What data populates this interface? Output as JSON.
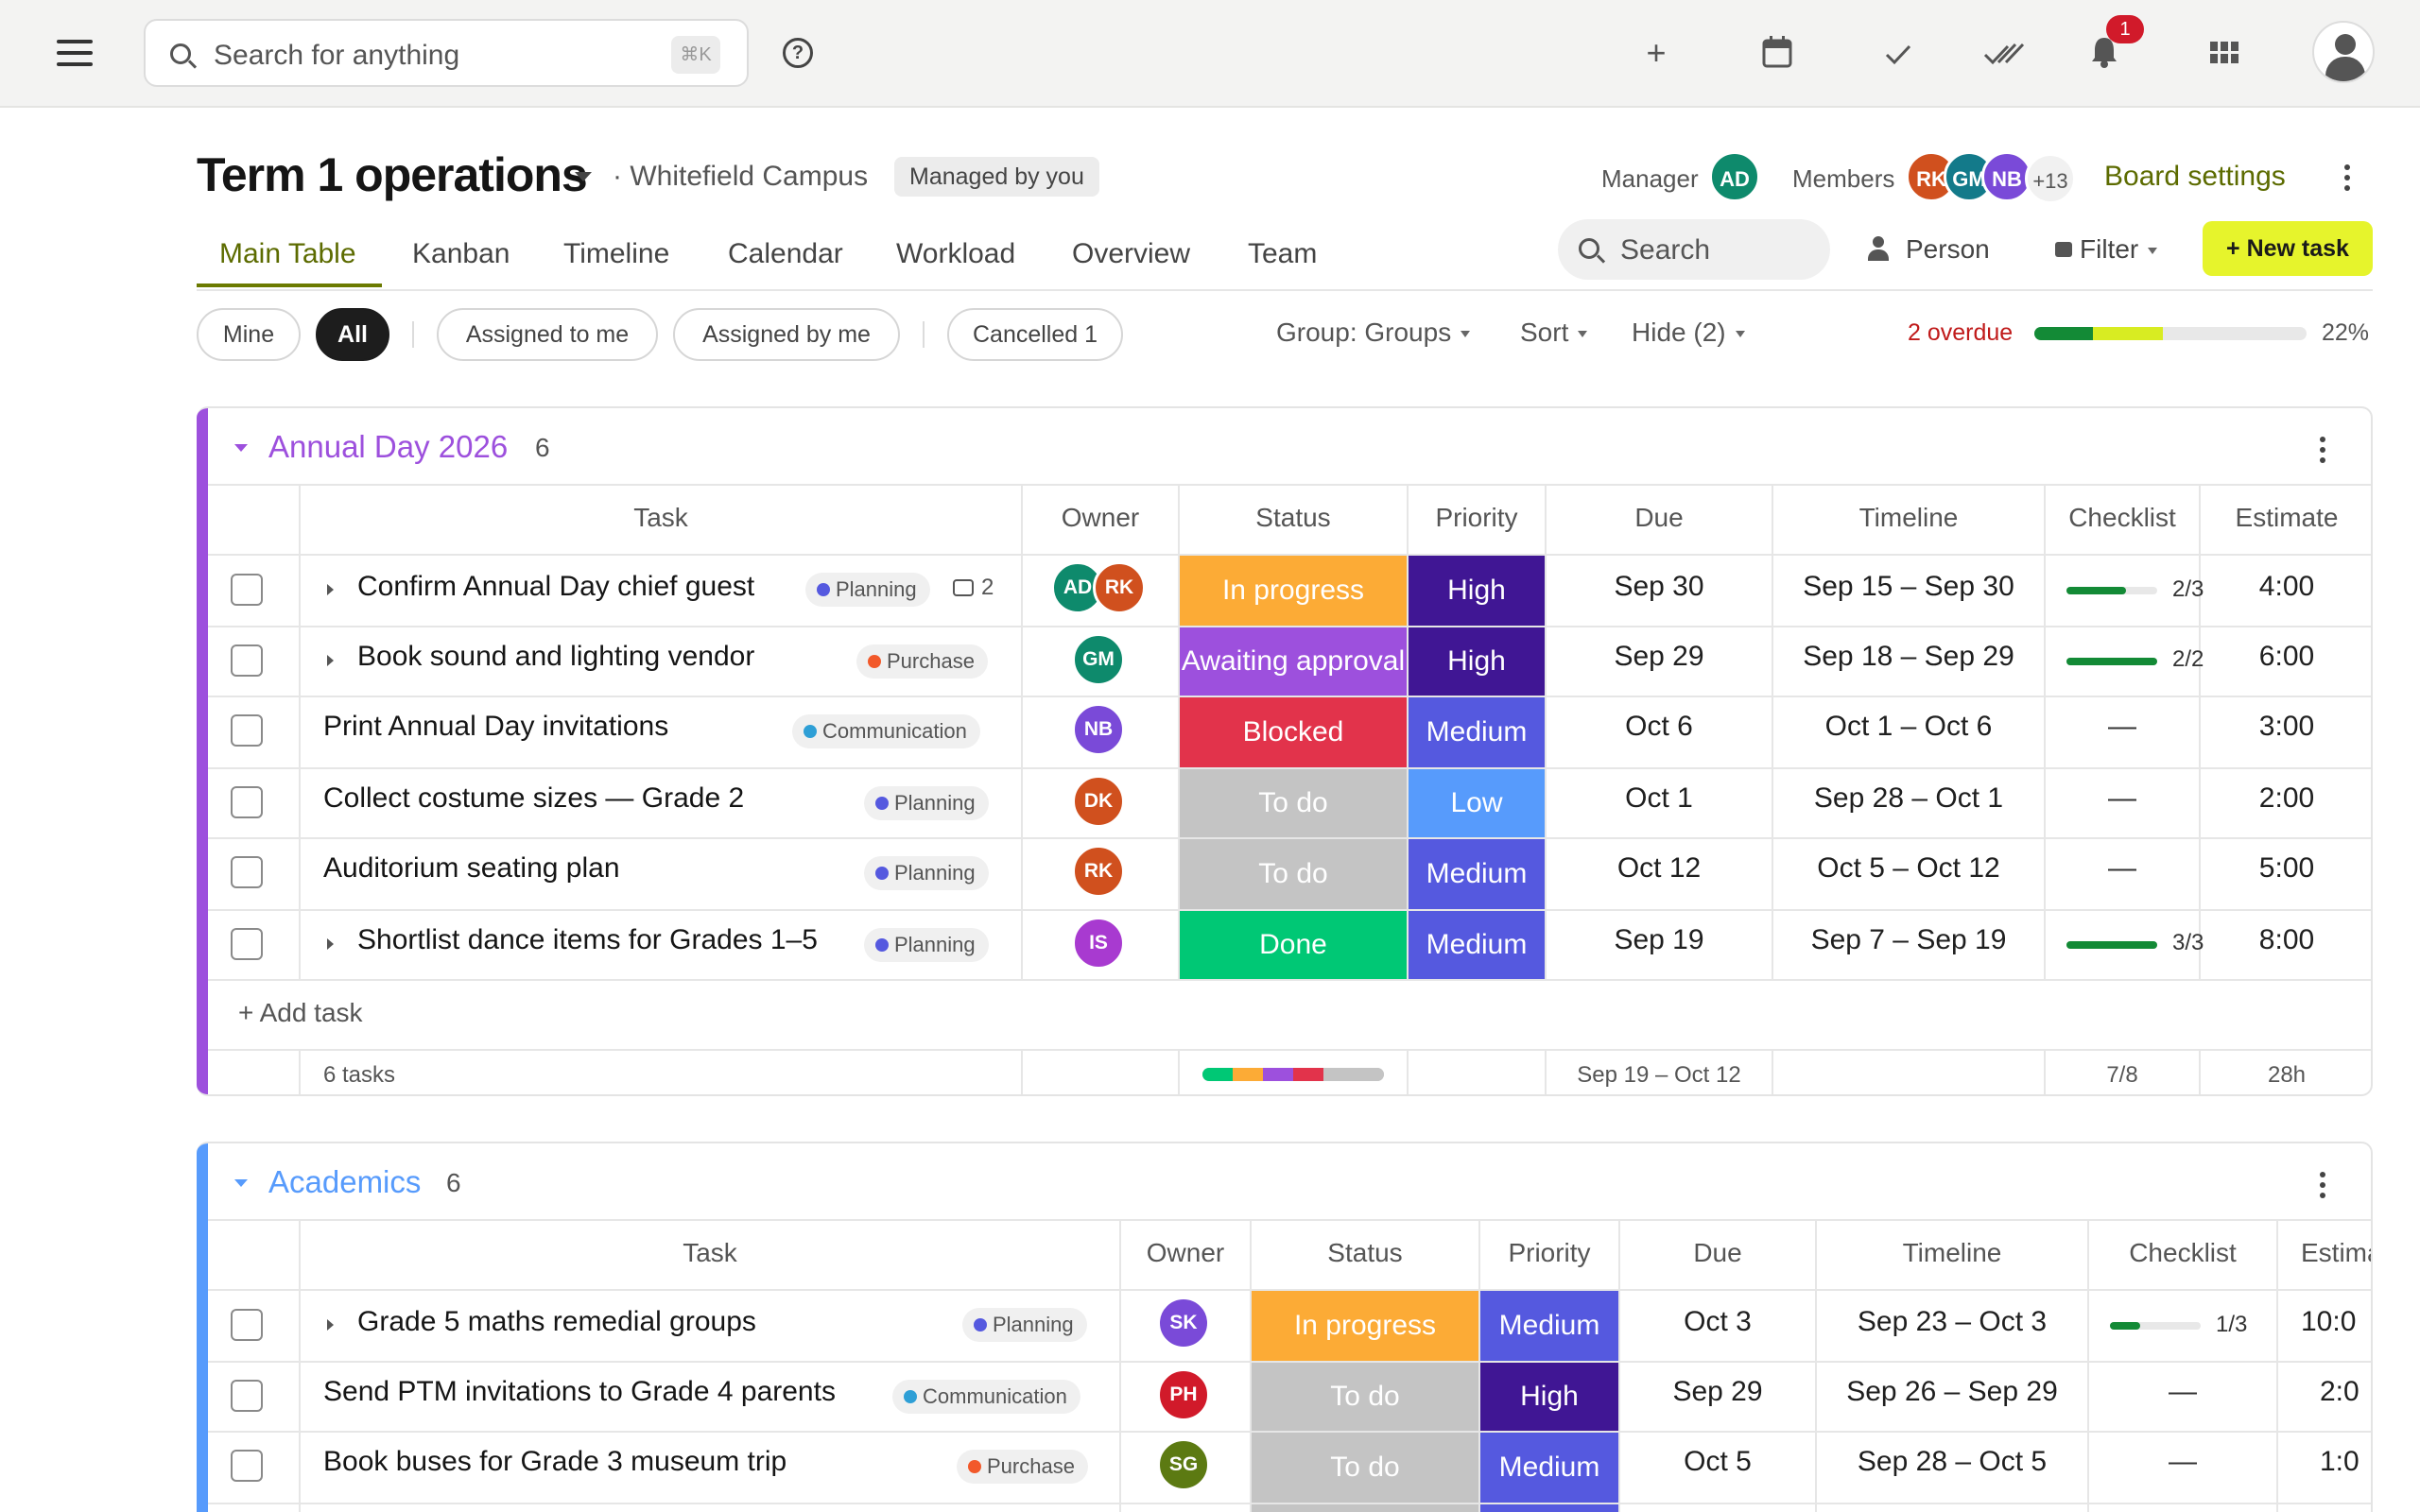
{
  "topbar": {
    "search_placeholder": "Search for anything",
    "shortcut": "⌘K",
    "notification_count": "1",
    "icons": [
      "menu-icon",
      "search-icon",
      "help-icon",
      "plus-icon",
      "calendar-icon",
      "check-icon",
      "double-check-icon",
      "bell-icon",
      "apps-grid-icon",
      "profile-icon"
    ]
  },
  "board": {
    "title": "Term 1 operations",
    "campus": "· Whitefield Campus",
    "managed_badge": "Managed by you",
    "manager_label": "Manager",
    "manager_initials": "AD",
    "members_label": "Members",
    "members": [
      "RK",
      "GM",
      "NB"
    ],
    "members_more": "+13",
    "settings_label": "Board settings"
  },
  "tabs": [
    "Main Table",
    "Kanban",
    "Timeline",
    "Calendar",
    "Workload",
    "Overview",
    "Team"
  ],
  "toolbar": {
    "search_placeholder": "Search",
    "person_label": "Person",
    "filter_label": "Filter",
    "new_task_label": "+ New task"
  },
  "filters": {
    "chips": [
      "Mine",
      "All",
      "Assigned to me",
      "Assigned by me",
      "Cancelled 1"
    ],
    "group_label": "Group: Groups",
    "sort_label": "Sort",
    "hide_label": "Hide (2)",
    "overdue_label": "2 overdue",
    "progress_percent": "22%"
  },
  "colors": {
    "in_progress": "#fcab36",
    "awaiting": "#9d50dd",
    "blocked": "#e2334b",
    "todo": "#c4c4c4",
    "done": "#00c875",
    "high": "#401694",
    "medium": "#5559df",
    "low": "#579bfc",
    "accent": "#6b7a00"
  },
  "groups": [
    {
      "name": "Annual Day 2026",
      "count": "6",
      "color": "#9d50dd",
      "columns": [
        "Task",
        "Owner",
        "Status",
        "Priority",
        "Due",
        "Timeline",
        "Checklist",
        "Estimate"
      ],
      "rows": [
        {
          "task": "Confirm Annual Day chief guest",
          "tag": "Planning",
          "comments": "2",
          "owners": [
            "AD",
            "RK"
          ],
          "status": "In progress",
          "priority": "High",
          "due": "Sep 30",
          "timeline": "Sep 15 – Sep 30",
          "checklist": "2/3",
          "estimate": "4:00"
        },
        {
          "task": "Book sound and lighting vendor",
          "tag": "Purchase",
          "owners": [
            "GM"
          ],
          "status": "Awaiting approval",
          "priority": "High",
          "due": "Sep 29",
          "timeline": "Sep 18 – Sep 29",
          "checklist": "2/2",
          "estimate": "6:00"
        },
        {
          "task": "Print Annual Day invitations",
          "tag": "Communication",
          "owners": [
            "NB"
          ],
          "status": "Blocked",
          "priority": "Medium",
          "due": "Oct 6",
          "timeline": "Oct 1 – Oct 6",
          "checklist": "—",
          "estimate": "3:00"
        },
        {
          "task": "Collect costume sizes — Grade 2",
          "tag": "Planning",
          "owners": [
            "DK"
          ],
          "status": "To do",
          "priority": "Low",
          "due": "Oct 1",
          "timeline": "Sep 28 – Oct 1",
          "checklist": "—",
          "estimate": "2:00"
        },
        {
          "task": "Auditorium seating plan",
          "tag": "Planning",
          "owners": [
            "RK"
          ],
          "status": "To do",
          "priority": "Medium",
          "due": "Oct 12",
          "timeline": "Oct 5 – Oct 12",
          "checklist": "—",
          "estimate": "5:00"
        },
        {
          "task": "Shortlist dance items for Grades 1–5",
          "tag": "Planning",
          "owners": [
            "IS"
          ],
          "status": "Done",
          "priority": "Medium",
          "due": "Sep 19",
          "timeline": "Sep 7 – Sep 19",
          "checklist": "3/3",
          "estimate": "8:00"
        }
      ],
      "add_task": "+ Add task",
      "summary": {
        "tasks": "6 tasks",
        "timeline": "Sep 19 – Oct 12",
        "checklist": "7/8",
        "estimate": "28h"
      }
    },
    {
      "name": "Academics",
      "count": "6",
      "color": "#579bfc",
      "columns": [
        "Task",
        "Owner",
        "Status",
        "Priority",
        "Due",
        "Timeline",
        "Checklist",
        "Estima"
      ],
      "rows": [
        {
          "task": "Grade 5 maths remedial groups",
          "tag": "Planning",
          "owners": [
            "SK"
          ],
          "status": "In progress",
          "priority": "Medium",
          "due": "Oct 3",
          "timeline": "Sep 23 – Oct 3",
          "checklist": "1/3",
          "estimate": "10:0"
        },
        {
          "task": "Send PTM invitations to Grade 4 parents",
          "tag": "Communication",
          "owners": [
            "PH"
          ],
          "status": "To do",
          "priority": "High",
          "due": "Sep 29",
          "timeline": "Sep 26 – Sep 29",
          "checklist": "—",
          "estimate": "2:0"
        },
        {
          "task": "Book buses for Grade 3 museum trip",
          "tag": "Purchase",
          "owners": [
            "SG"
          ],
          "status": "To do",
          "priority": "Medium",
          "due": "Oct 5",
          "timeline": "Sep 28 – Oct 5",
          "checklist": "—",
          "estimate": "1:0"
        }
      ]
    }
  ]
}
